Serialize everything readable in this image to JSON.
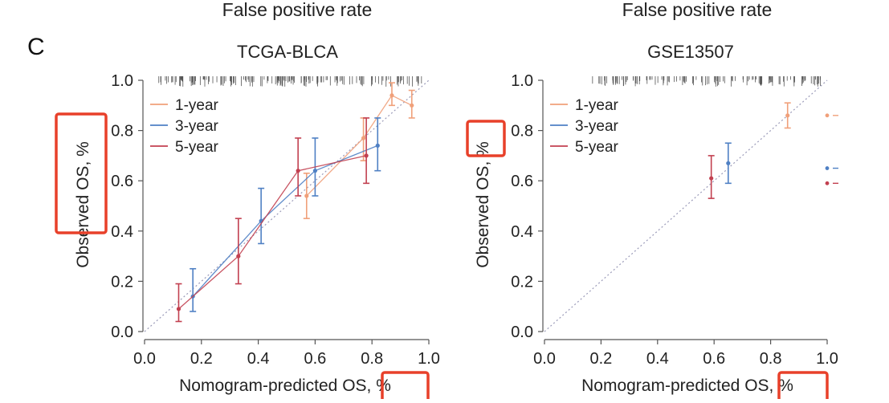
{
  "header_fragments": [
    "False positive rate",
    "False positive rate"
  ],
  "panel_letter": "C",
  "colors": {
    "one_year": "#F0A07A",
    "three_year": "#4F80C4",
    "five_year": "#C24050",
    "diagonal": "#9A9AB8",
    "axis": "#555555",
    "highlight": "#E8402A"
  },
  "chart_data": [
    {
      "type": "scatter",
      "title": "TCGA-BLCA",
      "xlabel": "Nomogram-predicted OS, %",
      "ylabel": "Observed OS, %",
      "xlim": [
        0.0,
        1.0
      ],
      "ylim": [
        0.0,
        1.0
      ],
      "xticks": [
        "0.0",
        "0.2",
        "0.4",
        "0.6",
        "0.8",
        "1.0"
      ],
      "yticks": [
        "0.0",
        "0.2",
        "0.4",
        "0.6",
        "0.8",
        "1.0"
      ],
      "legend": [
        "1-year",
        "3-year",
        "5-year"
      ],
      "legend_position": "top-left",
      "reference_line": "diagonal",
      "rug": "dense",
      "series": [
        {
          "name": "1-year",
          "points": [
            {
              "x": 0.57,
              "y": 0.54,
              "lo": 0.45,
              "hi": 0.63
            },
            {
              "x": 0.77,
              "y": 0.77,
              "lo": 0.68,
              "hi": 0.85
            },
            {
              "x": 0.87,
              "y": 0.94,
              "lo": 0.9,
              "hi": 0.99
            },
            {
              "x": 0.94,
              "y": 0.9,
              "lo": 0.85,
              "hi": 0.96
            }
          ]
        },
        {
          "name": "3-year",
          "points": [
            {
              "x": 0.17,
              "y": 0.14,
              "lo": 0.08,
              "hi": 0.25
            },
            {
              "x": 0.41,
              "y": 0.44,
              "lo": 0.35,
              "hi": 0.57
            },
            {
              "x": 0.6,
              "y": 0.64,
              "lo": 0.54,
              "hi": 0.77
            },
            {
              "x": 0.82,
              "y": 0.74,
              "lo": 0.64,
              "hi": 0.85
            }
          ]
        },
        {
          "name": "5-year",
          "points": [
            {
              "x": 0.12,
              "y": 0.09,
              "lo": 0.04,
              "hi": 0.19
            },
            {
              "x": 0.33,
              "y": 0.3,
              "lo": 0.19,
              "hi": 0.45
            },
            {
              "x": 0.54,
              "y": 0.64,
              "lo": 0.54,
              "hi": 0.77
            },
            {
              "x": 0.78,
              "y": 0.7,
              "lo": 0.59,
              "hi": 0.85
            }
          ]
        }
      ]
    },
    {
      "type": "scatter",
      "title": "GSE13507",
      "xlabel": "Nomogram-predicted OS, %",
      "ylabel": "Observed OS, %",
      "xlim": [
        0.0,
        1.0
      ],
      "ylim": [
        0.0,
        1.0
      ],
      "xticks": [
        "0.0",
        "0.2",
        "0.4",
        "0.6",
        "0.8",
        "1.0"
      ],
      "yticks": [
        "0.0",
        "0.2",
        "0.4",
        "0.6",
        "0.8",
        "1.0"
      ],
      "legend": [
        "1-year",
        "3-year",
        "5-year"
      ],
      "legend_position": "top-left",
      "reference_line": "diagonal",
      "rug": "sparse",
      "series": [
        {
          "name": "1-year",
          "points": [
            {
              "x": 0.86,
              "y": 0.86,
              "lo": 0.81,
              "hi": 0.91
            }
          ],
          "edge_marker": 0.86
        },
        {
          "name": "3-year",
          "points": [
            {
              "x": 0.65,
              "y": 0.67,
              "lo": 0.59,
              "hi": 0.75
            }
          ],
          "edge_marker": 0.65
        },
        {
          "name": "5-year",
          "points": [
            {
              "x": 0.59,
              "y": 0.61,
              "lo": 0.53,
              "hi": 0.7
            }
          ],
          "edge_marker": 0.59
        }
      ]
    }
  ]
}
